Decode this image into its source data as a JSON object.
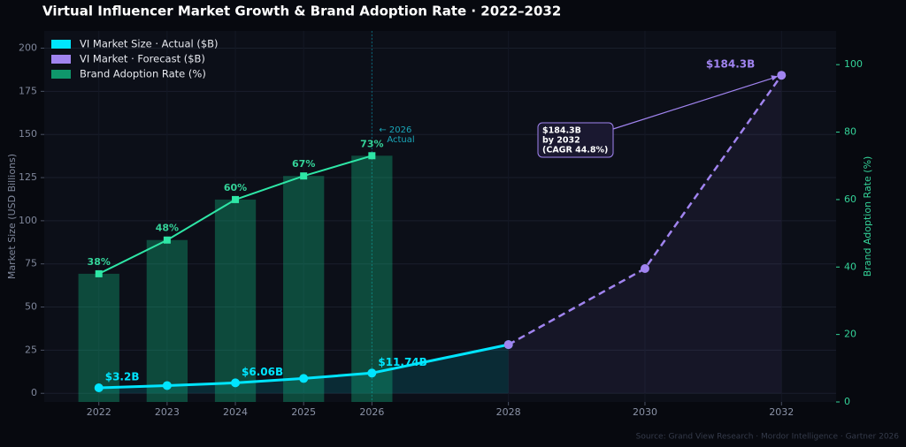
{
  "chart_data": {
    "type": "combo",
    "title": "Virtual Influencer Market Growth & Brand Adoption Rate · 2022–2032",
    "source": "Source: Grand View Research · Mordor Intelligence · Gartner 2026",
    "ylabel": "Market Size (USD Billions)",
    "y2label": "Brand Adoption Rate (%)",
    "xlim": [
      2021.2,
      2032.8
    ],
    "xticks": [
      2022,
      2023,
      2024,
      2025,
      2026,
      2028,
      2030,
      2032
    ],
    "ylim": [
      -5,
      210
    ],
    "yticks": [
      0,
      25,
      50,
      75,
      100,
      125,
      150,
      175,
      200
    ],
    "y2lim": [
      0,
      110
    ],
    "y2ticks": [
      0,
      20,
      40,
      60,
      80,
      100
    ],
    "grid": true,
    "legend": "upper left",
    "series": [
      {
        "name": "VI Market Size · Actual ($B)",
        "type": "line",
        "color": "#00e5ff",
        "x": [
          2022,
          2023,
          2024,
          2025,
          2026,
          2028
        ],
        "values": [
          3.2,
          4.5,
          6.06,
          8.6,
          11.74,
          28.2
        ],
        "value_labels": [
          "$3.2B",
          null,
          "$6.06B",
          null,
          "$11.74B",
          null
        ]
      },
      {
        "name": "VI Market · Forecast ($B)",
        "type": "line",
        "dashed": true,
        "color": "#a184f0",
        "x": [
          2028,
          2030,
          2032
        ],
        "values": [
          28.2,
          72.3,
          184.3
        ],
        "value_labels": [
          null,
          null,
          "$184.3B"
        ]
      },
      {
        "name": "Brand Adoption Rate (%)",
        "type": "bar",
        "axis": "y2",
        "color": "#10b981",
        "x": [
          2022,
          2023,
          2024,
          2025,
          2026
        ],
        "values": [
          38,
          48,
          60,
          67,
          73
        ],
        "value_labels": [
          "38%",
          "48%",
          "60%",
          "67%",
          "73%"
        ]
      }
    ],
    "annotations": [
      {
        "x": 2026,
        "lines": [
          "← 2026",
          "Actual"
        ]
      },
      {
        "lines": [
          "$184.3B",
          "by 2032",
          "(CAGR 44.8%)"
        ]
      }
    ]
  }
}
